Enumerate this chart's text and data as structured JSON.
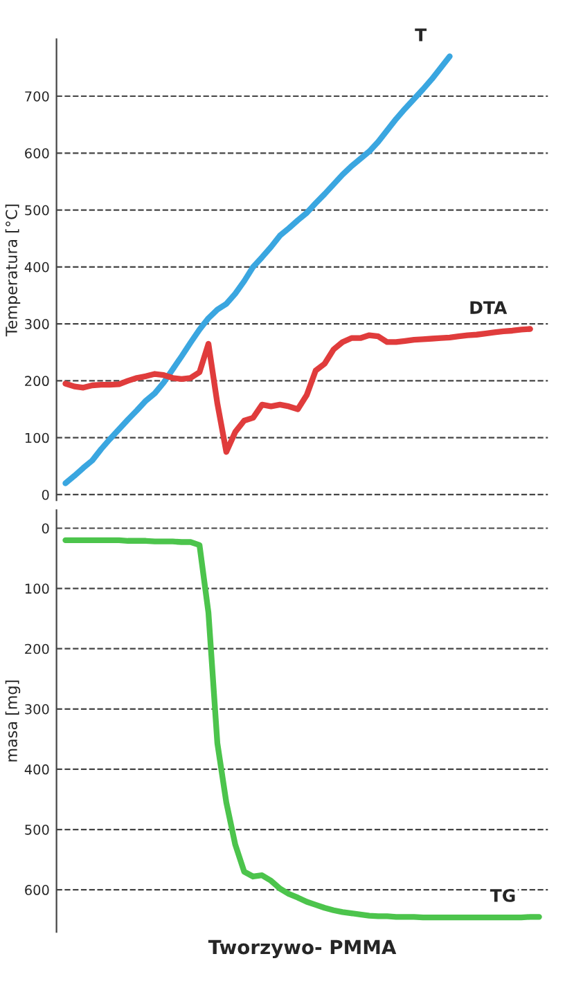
{
  "chart_data": [
    {
      "type": "line",
      "ylabel": "Temperatura [°C]",
      "grid": "y",
      "tick_labels": "y",
      "line_style": "solid",
      "categories": [
        null,
        null,
        null,
        null,
        null,
        null,
        null,
        null,
        null,
        null,
        null,
        null,
        null,
        null,
        null,
        null,
        null,
        null,
        null,
        null,
        null,
        null,
        null,
        null,
        null,
        null,
        null,
        null,
        null,
        null,
        null,
        null,
        null,
        null,
        null,
        null,
        null,
        null,
        null,
        null,
        null,
        null,
        null,
        null,
        null,
        null,
        null,
        null,
        null,
        null,
        null,
        null,
        null,
        null
      ],
      "ylim": [
        -10,
        800
      ],
      "yticks": [
        0,
        100,
        200,
        300,
        400,
        500,
        600,
        700
      ],
      "series": [
        {
          "name": "T",
          "color": "#3aa6e0",
          "values": [
            20,
            33,
            47,
            60,
            80,
            98,
            115,
            132,
            148,
            165,
            178,
            197,
            220,
            243,
            267,
            290,
            310,
            325,
            335,
            353,
            375,
            400,
            417,
            435,
            455,
            468,
            482,
            495,
            512,
            528,
            545,
            562,
            577,
            590,
            603,
            620,
            640,
            660,
            678,
            695,
            712,
            730,
            750,
            770,
            null,
            null,
            null,
            null,
            null,
            null,
            null,
            null,
            null,
            null
          ]
        },
        {
          "name": "DTA",
          "color": "#e03c3c",
          "values": [
            195,
            190,
            188,
            192,
            193,
            193,
            194,
            200,
            205,
            208,
            212,
            210,
            205,
            203,
            205,
            215,
            265,
            160,
            75,
            110,
            130,
            135,
            158,
            155,
            158,
            155,
            150,
            175,
            218,
            230,
            255,
            268,
            275,
            275,
            280,
            278,
            268,
            268,
            270,
            272,
            273,
            274,
            275,
            276,
            278,
            280,
            281,
            283,
            285,
            287,
            288,
            290,
            291,
            null
          ]
        }
      ]
    },
    {
      "type": "line",
      "ylabel": "masa [mg]",
      "xlabel": "Tworzywo- PMMA",
      "grid": "y",
      "tick_labels": "y",
      "line_style": "solid",
      "categories": [
        null,
        null,
        null,
        null,
        null,
        null,
        null,
        null,
        null,
        null,
        null,
        null,
        null,
        null,
        null,
        null,
        null,
        null,
        null,
        null,
        null,
        null,
        null,
        null,
        null,
        null,
        null,
        null,
        null,
        null,
        null,
        null,
        null,
        null,
        null,
        null,
        null,
        null,
        null,
        null,
        null,
        null,
        null,
        null,
        null,
        null,
        null,
        null,
        null,
        null,
        null,
        null,
        null,
        null
      ],
      "ylim": [
        670,
        -30
      ],
      "yticks": [
        0,
        100,
        200,
        300,
        400,
        500,
        600
      ],
      "series": [
        {
          "name": "TG",
          "color": "#4cc44c",
          "values": [
            20,
            20,
            20,
            20,
            20,
            20,
            20,
            21,
            21,
            21,
            22,
            22,
            22,
            23,
            23,
            28,
            140,
            357,
            455,
            525,
            570,
            578,
            576,
            585,
            598,
            607,
            613,
            620,
            625,
            630,
            634,
            637,
            639,
            641,
            643,
            644,
            644,
            645,
            645,
            645,
            646,
            646,
            646,
            646,
            646,
            646,
            646,
            646,
            646,
            646,
            646,
            646,
            645,
            645
          ]
        }
      ]
    }
  ]
}
